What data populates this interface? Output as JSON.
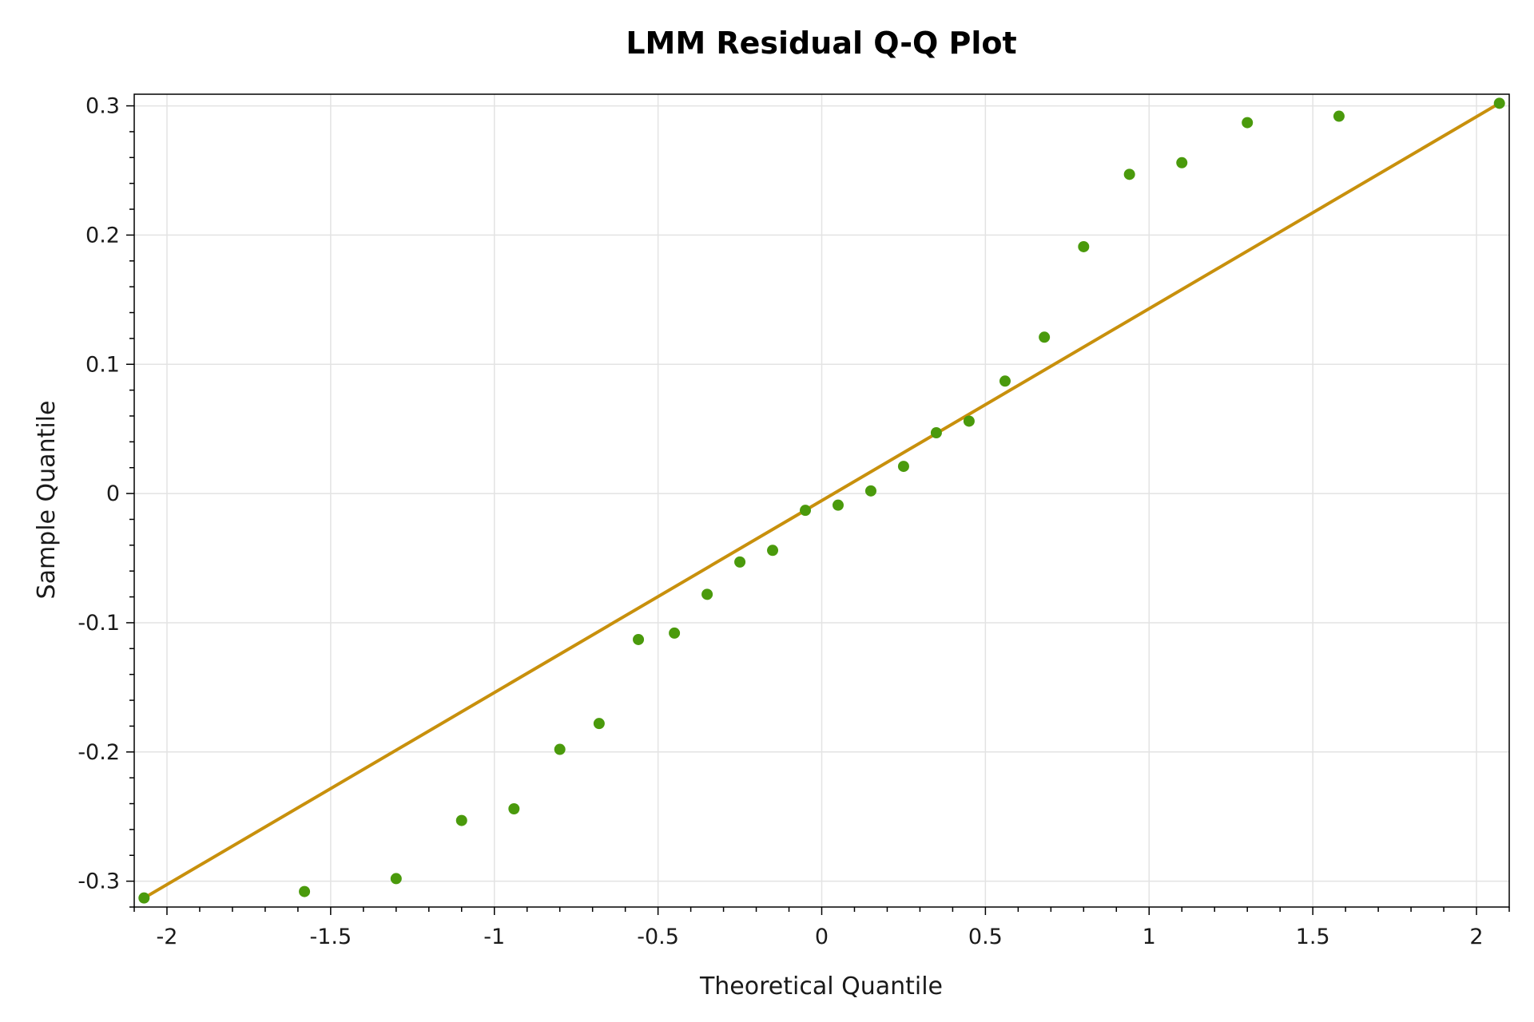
{
  "chart_data": {
    "type": "scatter",
    "title": "LMM Residual Q-Q Plot",
    "xlabel": "Theoretical Quantile",
    "ylabel": "Sample Quantile",
    "xlim": [
      -2.1,
      2.1
    ],
    "ylim": [
      -0.32,
      0.309
    ],
    "xticks": [
      -2,
      -1.5,
      -1,
      -0.5,
      0,
      0.5,
      1,
      1.5,
      2
    ],
    "xtick_labels": [
      "-2",
      "-1.5",
      "-1",
      "-0.5",
      "0",
      "0.5",
      "1",
      "1.5",
      "2"
    ],
    "yticks": [
      -0.3,
      -0.2,
      -0.1,
      0,
      0.1,
      0.2,
      0.3
    ],
    "ytick_labels": [
      "-0.3",
      "-0.2",
      "-0.1",
      "0",
      "0.1",
      "0.2",
      "0.3"
    ],
    "grid": true,
    "series": [
      {
        "kind": "points",
        "color": "#4a9a0c",
        "x": [
          -2.07,
          -1.58,
          -1.3,
          -1.1,
          -0.94,
          -0.8,
          -0.68,
          -0.56,
          -0.45,
          -0.35,
          -0.25,
          -0.15,
          -0.05,
          0.05,
          0.15,
          0.25,
          0.35,
          0.45,
          0.56,
          0.68,
          0.8,
          0.94,
          1.1,
          1.3,
          1.58,
          2.07
        ],
        "y": [
          -0.313,
          -0.308,
          -0.298,
          -0.253,
          -0.244,
          -0.198,
          -0.178,
          -0.113,
          -0.108,
          -0.078,
          -0.053,
          -0.044,
          -0.013,
          -0.009,
          0.002,
          0.021,
          0.047,
          0.056,
          0.087,
          0.121,
          0.191,
          0.247,
          0.256,
          0.287,
          0.292,
          0.302
        ]
      },
      {
        "kind": "reference-line",
        "color": "#c8900c",
        "x": [
          -2.07,
          2.07
        ],
        "y": [
          -0.313,
          0.302
        ]
      }
    ]
  }
}
